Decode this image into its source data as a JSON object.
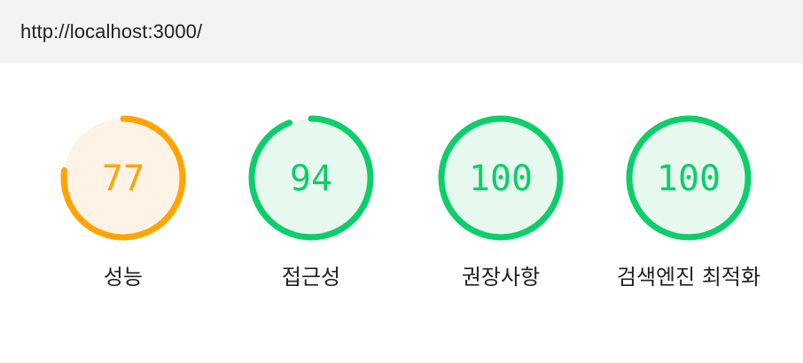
{
  "url": "http://localhost:3000/",
  "gauges": [
    {
      "score": 77,
      "label": "성능",
      "color": "#ffa400",
      "bg": "#fff3e6"
    },
    {
      "score": 94,
      "label": "접근성",
      "color": "#0cce6b",
      "bg": "#e7f8ee"
    },
    {
      "score": 100,
      "label": "권장사항",
      "color": "#0cce6b",
      "bg": "#e7f8ee"
    },
    {
      "score": 100,
      "label": "검색엔진 최적화",
      "color": "#0cce6b",
      "bg": "#e7f8ee"
    }
  ]
}
